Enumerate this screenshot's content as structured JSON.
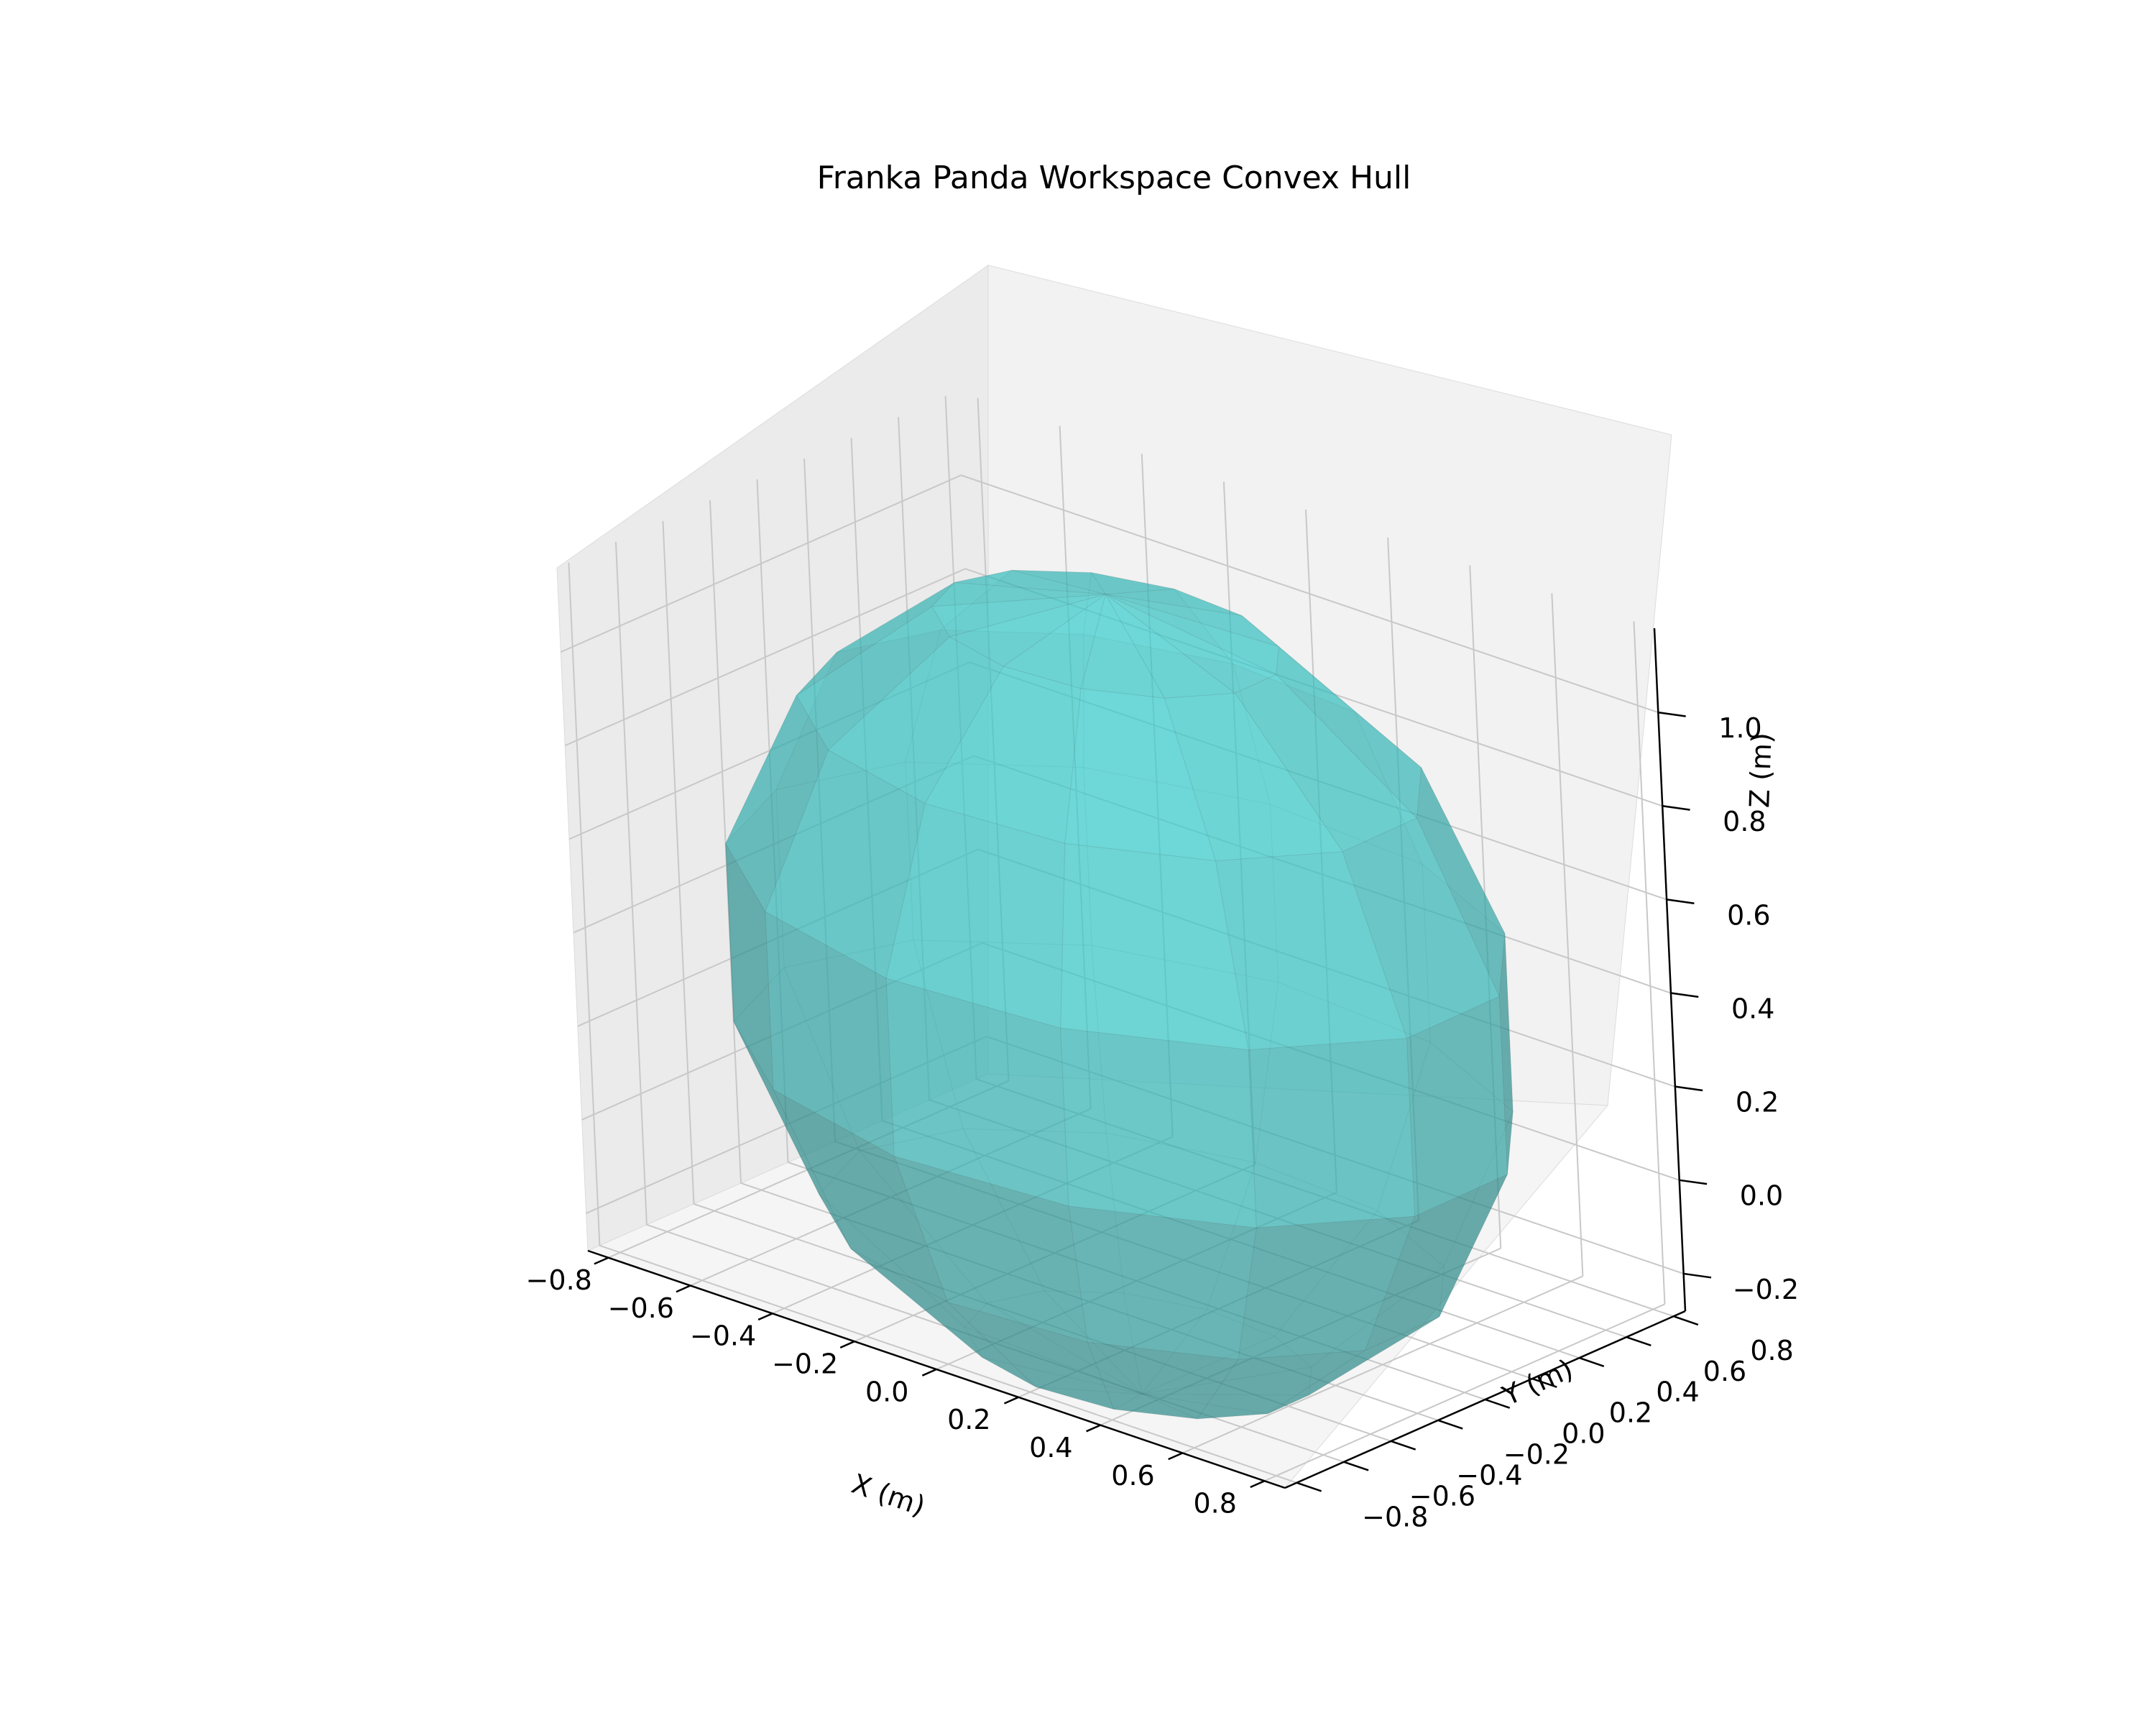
{
  "chart_data": {
    "type": "3d-surface",
    "title": "Franka Panda Workspace Convex Hull",
    "xlabel": "X (m)",
    "ylabel": "Y (m)",
    "zlabel": "Z (m)",
    "xlim": [
      -0.85,
      0.85
    ],
    "ylim": [
      -0.85,
      0.85
    ],
    "zlim": [
      -0.28,
      1.18
    ],
    "xticks": [
      -0.8,
      -0.6,
      -0.4,
      -0.2,
      0.0,
      0.2,
      0.4,
      0.6,
      0.8
    ],
    "yticks": [
      -0.8,
      -0.6,
      -0.4,
      -0.2,
      0.0,
      0.2,
      0.4,
      0.6,
      0.8
    ],
    "zticks": [
      -0.2,
      0.0,
      0.2,
      0.4,
      0.6,
      0.8,
      1.0
    ],
    "xtick_labels": [
      "−0.8",
      "−0.6",
      "−0.4",
      "−0.2",
      "0.0",
      "0.2",
      "0.4",
      "0.6",
      "0.8"
    ],
    "ytick_labels": [
      "−0.8",
      "−0.6",
      "−0.4",
      "−0.2",
      "0.0",
      "0.2",
      "0.4",
      "0.6",
      "0.8"
    ],
    "ztick_labels": [
      "−0.2",
      "0.0",
      "0.2",
      "0.4",
      "0.6",
      "0.8",
      "1.0"
    ],
    "grid": true,
    "hull": {
      "center": [
        0.0,
        0.0,
        0.333
      ],
      "radius": 0.855,
      "color": "#00e5e5",
      "opacity": 0.45,
      "edge_color": "#3a3a3a"
    }
  }
}
